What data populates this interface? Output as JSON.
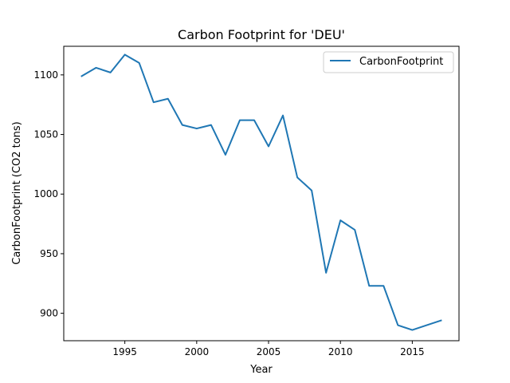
{
  "chart_data": {
    "type": "line",
    "title": "Carbon Footprint for 'DEU'",
    "xlabel": "Year",
    "ylabel": "CarbonFootprint (CO2 tons)",
    "xlim": [
      1990.75,
      2018.25
    ],
    "ylim": [
      877,
      1124
    ],
    "x_ticks": [
      1995,
      2000,
      2005,
      2010,
      2015
    ],
    "y_ticks": [
      900,
      950,
      1000,
      1050,
      1100
    ],
    "grid": false,
    "legend_position": "top-right",
    "series": [
      {
        "name": "CarbonFootprint",
        "color": "#1f77b4",
        "x": [
          1992,
          1993,
          1994,
          1995,
          1996,
          1997,
          1998,
          1999,
          2000,
          2001,
          2002,
          2003,
          2004,
          2005,
          2006,
          2007,
          2008,
          2009,
          2010,
          2011,
          2012,
          2013,
          2014,
          2015,
          2016,
          2017
        ],
        "values": [
          1099,
          1106,
          1102,
          1117,
          1110,
          1077,
          1080,
          1058,
          1055,
          1058,
          1033,
          1062,
          1062,
          1040,
          1066,
          1014,
          1003,
          934,
          978,
          970,
          923,
          923,
          890,
          886,
          890,
          894
        ]
      }
    ]
  }
}
